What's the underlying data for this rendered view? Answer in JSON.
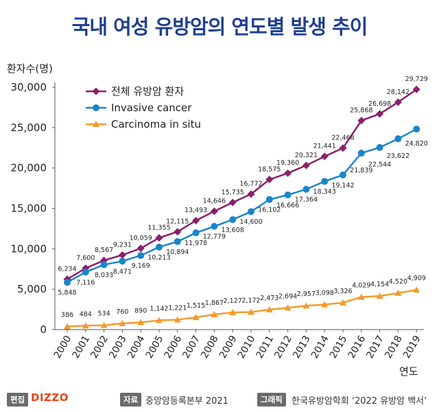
{
  "title": "국내 여성 유방암의 연도별 발생 추이",
  "footer": {
    "edit_label": "편집",
    "brand": "DIZZO",
    "source_label": "자료",
    "source_text": "중앙암등록본부 2021",
    "graphic_label": "그래픽",
    "graphic_text": "한국유방암학회 ‘2022 유방암 백서’"
  },
  "chart_data": {
    "type": "line",
    "title": "국내 여성 유방암의 연도별 발생 추이",
    "ylabel": "환자수(명)",
    "xlabel": "연도",
    "ylim": [
      0,
      30000
    ],
    "yticks": [
      0,
      5000,
      10000,
      15000,
      20000,
      25000,
      30000
    ],
    "ytick_labels": [
      "0",
      "5,000",
      "10,000",
      "15,000",
      "20,000",
      "25,000",
      "30,000"
    ],
    "grid": false,
    "legend_position": "top-left",
    "categories": [
      "2000",
      "2001",
      "2002",
      "2003",
      "2004",
      "2005",
      "2006",
      "2007",
      "2008",
      "2009",
      "2010",
      "2011",
      "2012",
      "2013",
      "2014",
      "2015",
      "2016",
      "2017",
      "2018",
      "2019"
    ],
    "series": [
      {
        "name": "전체 유방암 환자",
        "color": "#8b1f6e",
        "marker": "diamond",
        "values": [
          6234,
          7600,
          8567,
          9231,
          10059,
          11355,
          12115,
          13493,
          14646,
          15735,
          16772,
          18575,
          19360,
          20321,
          21441,
          22468,
          25868,
          26698,
          28142,
          29729
        ],
        "labels": [
          "6,234",
          "7,600",
          "8,567",
          "9,231",
          "10,059",
          "11,355",
          "12,115",
          "13,493",
          "14,646",
          "15,735",
          "16,772",
          "18,575",
          "19,360",
          "20,321",
          "21,441",
          "22,468",
          "25,868",
          "26,698",
          "28,142",
          "29,729"
        ]
      },
      {
        "name": "Invasive cancer",
        "color": "#1a86c8",
        "marker": "circle",
        "values": [
          5848,
          7116,
          8033,
          8471,
          9169,
          10213,
          10894,
          11978,
          12779,
          13608,
          14600,
          16102,
          16666,
          17364,
          18343,
          19142,
          21839,
          22544,
          23622,
          24820
        ],
        "labels": [
          "5,848",
          "7,116",
          "8,033",
          "8,471",
          "9,169",
          "10,213",
          "10,894",
          "11,978",
          "12,779",
          "13,608",
          "14,600",
          "16,102",
          "16,666",
          "17,364",
          "18,343",
          "19,142",
          "21,839",
          "22,544",
          "23,622",
          "24,820"
        ]
      },
      {
        "name": "Carcinoma in situ",
        "color": "#f39a2c",
        "marker": "triangle",
        "values": [
          386,
          484,
          534,
          760,
          890,
          1142,
          1221,
          1515,
          1867,
          2127,
          2172,
          2473,
          2694,
          2957,
          3098,
          3326,
          4029,
          4154,
          4520,
          4909
        ],
        "labels": [
          "386",
          "484",
          "534",
          "760",
          "890",
          "1,142",
          "1,221",
          "1,515",
          "1,867",
          "2,127",
          "2,172",
          "2,473",
          "2,694",
          "2,957",
          "3,098",
          "3,326",
          "4,029",
          "4,154",
          "4,520",
          "4,909"
        ]
      }
    ]
  }
}
